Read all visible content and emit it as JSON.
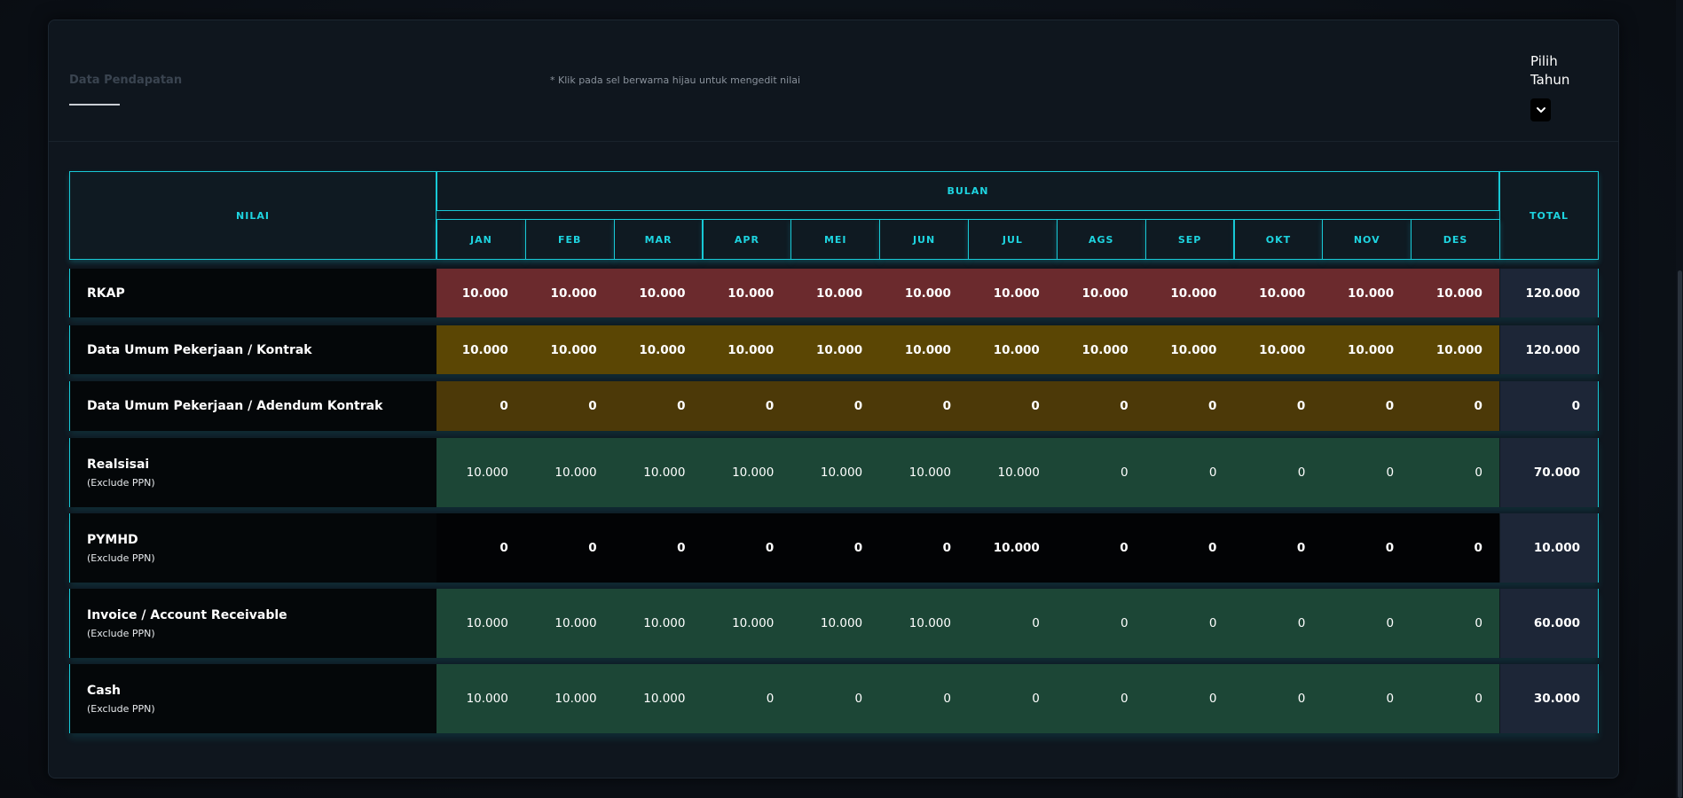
{
  "header": {
    "title": "Data Pendapatan",
    "hint": "* Klik pada sel berwarna hijau untuk mengedit nilai",
    "year_label": "Pilih Tahun",
    "year_select_icon": "chevron-down-icon"
  },
  "table": {
    "col_value": "NILAI",
    "col_month_group": "BULAN",
    "col_total": "TOTAL",
    "months": [
      "JAN",
      "FEB",
      "MAR",
      "APR",
      "MEI",
      "JUN",
      "JUL",
      "AGS",
      "SEP",
      "OKT",
      "NOV",
      "DES"
    ],
    "rows": [
      {
        "label": "RKAP",
        "sublabel": "",
        "values": [
          "10.000",
          "10.000",
          "10.000",
          "10.000",
          "10.000",
          "10.000",
          "10.000",
          "10.000",
          "10.000",
          "10.000",
          "10.000",
          "10.000"
        ],
        "total": "120.000",
        "color": "#6b2a2d"
      },
      {
        "label": "Data Umum Pekerjaan / Kontrak",
        "sublabel": "",
        "values": [
          "10.000",
          "10.000",
          "10.000",
          "10.000",
          "10.000",
          "10.000",
          "10.000",
          "10.000",
          "10.000",
          "10.000",
          "10.000",
          "10.000"
        ],
        "total": "120.000",
        "color": "#5b4604"
      },
      {
        "label": "Data Umum Pekerjaan / Adendum Kontrak",
        "sublabel": "",
        "values": [
          "0",
          "0",
          "0",
          "0",
          "0",
          "0",
          "0",
          "0",
          "0",
          "0",
          "0",
          "0"
        ],
        "total": "0",
        "color": "#4c3908"
      },
      {
        "label": "Realsisai",
        "sublabel": "(Exclude PPN)",
        "values": [
          "10.000",
          "10.000",
          "10.000",
          "10.000",
          "10.000",
          "10.000",
          "10.000",
          "0",
          "0",
          "0",
          "0",
          "0"
        ],
        "total": "70.000",
        "color": "#1c4636"
      },
      {
        "label": "PYMHD",
        "sublabel": "(Exclude PPN)",
        "values": [
          "0",
          "0",
          "0",
          "0",
          "0",
          "0",
          "10.000",
          "0",
          "0",
          "0",
          "0",
          "0"
        ],
        "total": "10.000",
        "color": "#020305"
      },
      {
        "label": "Invoice / Account Receivable",
        "sublabel": "(Exclude PPN)",
        "values": [
          "10.000",
          "10.000",
          "10.000",
          "10.000",
          "10.000",
          "10.000",
          "0",
          "0",
          "0",
          "0",
          "0",
          "0"
        ],
        "total": "60.000",
        "color": "#1c4636"
      },
      {
        "label": "Cash",
        "sublabel": "(Exclude PPN)",
        "values": [
          "10.000",
          "10.000",
          "10.000",
          "0",
          "0",
          "0",
          "0",
          "0",
          "0",
          "0",
          "0",
          "0"
        ],
        "total": "30.000",
        "color": "#1c4636"
      }
    ]
  },
  "colors": {
    "accent": "#18c9d6",
    "background": "#0c1118",
    "total_cell": "#1d2637"
  }
}
